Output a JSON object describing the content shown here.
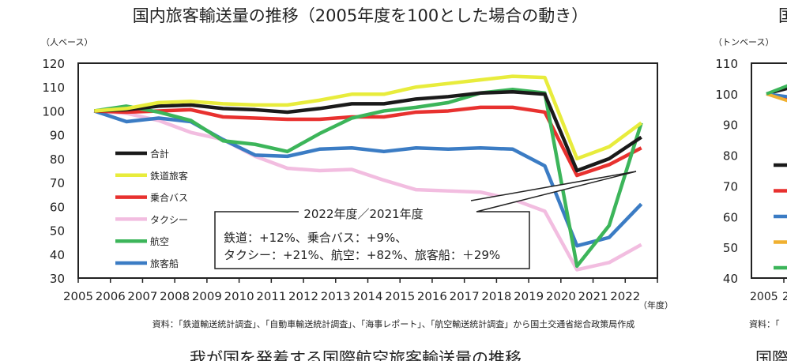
{
  "chart_data": [
    {
      "type": "line",
      "title": "国内旅客輸送量の推移（2005年度を100とした場合の動き）",
      "ylabel": "（人ベース）",
      "xlabel": "（年度）",
      "ylim": [
        30,
        120
      ],
      "yticks": [
        120,
        110,
        100,
        90,
        80,
        70,
        60,
        50,
        40,
        30
      ],
      "grid": false,
      "legend": "left",
      "categories": [
        "2005",
        "2006",
        "2007",
        "2008",
        "2009",
        "2010",
        "2011",
        "2012",
        "2013",
        "2014",
        "2015",
        "2016",
        "2017",
        "2018",
        "2019",
        "2020",
        "2021",
        "2022"
      ],
      "series": [
        {
          "name": "合計",
          "color": "#1a1a1a",
          "values": [
            100,
            100.5,
            102,
            102.5,
            101,
            100.5,
            99.5,
            101,
            103,
            103,
            105,
            106,
            107.5,
            108,
            107,
            75,
            80,
            89
          ]
        },
        {
          "name": "鉄道旅客",
          "color": "#e8ec3c",
          "values": [
            100,
            101,
            103.5,
            104,
            103,
            102.5,
            102.5,
            104.5,
            107,
            107,
            110,
            111.5,
            113,
            114.5,
            114,
            80,
            85,
            95
          ]
        },
        {
          "name": "乗合バス",
          "color": "#e8312f",
          "values": [
            100,
            99.5,
            100,
            100.5,
            97.5,
            97,
            96.5,
            96.5,
            97.5,
            97.5,
            99.5,
            100,
            101.5,
            101.5,
            99.5,
            73,
            77.5,
            84.5
          ]
        },
        {
          "name": "タクシー",
          "color": "#f2bde0",
          "values": [
            100,
            99,
            96,
            91,
            88,
            81,
            76,
            75,
            75.5,
            71,
            67,
            66.5,
            66,
            63,
            58,
            33.5,
            36.5,
            44
          ]
        },
        {
          "name": "航空",
          "color": "#3cb55a",
          "values": [
            100,
            102,
            99.5,
            96,
            87.5,
            86,
            83,
            90.5,
            97,
            100,
            101.5,
            103.5,
            107.5,
            109,
            107.5,
            35,
            52,
            95
          ]
        },
        {
          "name": "旅客船",
          "color": "#3b7cc4",
          "values": [
            100,
            95.5,
            97,
            95.5,
            88,
            81.5,
            81,
            84,
            84.5,
            83,
            84.5,
            84,
            84.5,
            84,
            77,
            43.5,
            47,
            61
          ]
        }
      ],
      "annotation": {
        "heading": "2022年度／2021年度",
        "line1": "鉄道：+12%、乗合バス：+9%、",
        "line2": "タクシー：+21%、航空：+82%、旅客船：＋29%"
      },
      "source": "資料：「鉄道輸送統計調査」、「自動車輸送統計調査」、「海事レポート」、「航空輸送統計調査」から国土交通省総合政策局作成"
    },
    {
      "type": "line",
      "title": "国",
      "ylabel": "（トンベース）",
      "ylim": [
        40,
        110
      ],
      "yticks": [
        110,
        100,
        90,
        80,
        70,
        60,
        50,
        40
      ],
      "categories": [
        "2005",
        "2"
      ],
      "legend_colors": [
        "#1a1a1a",
        "#e8312f",
        "#3b7cc4",
        "#f0b030",
        "#3cb55a"
      ],
      "source": "資料：「"
    }
  ],
  "next_title": "我が国を発着する国際航空旅客輸送量の推移",
  "next_title_right": "国際"
}
